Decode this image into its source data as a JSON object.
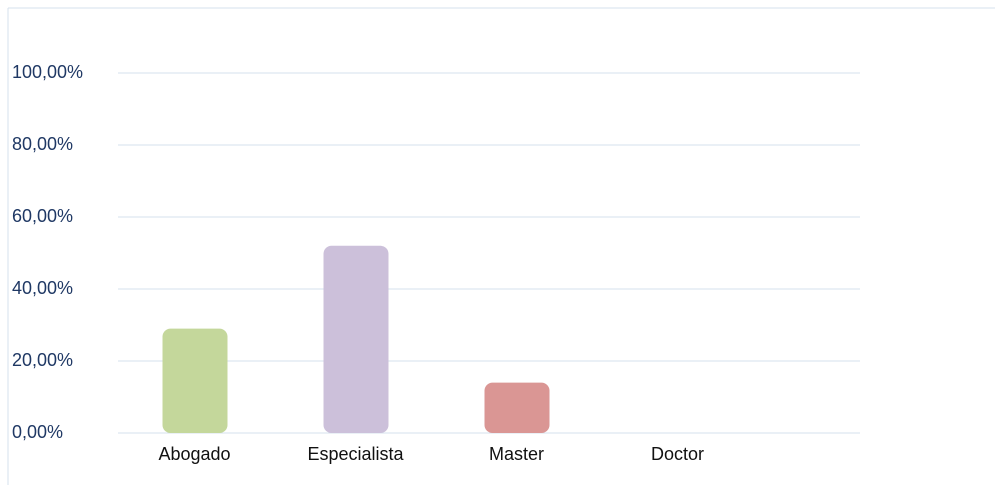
{
  "chart_data": {
    "type": "bar",
    "categories": [
      "Abogado",
      "Especialista",
      "Master",
      "Doctor"
    ],
    "values": [
      29,
      52,
      14,
      0
    ],
    "colors": [
      "#c4d79b",
      "#ccc0da",
      "#da9694",
      "#8eb4e3"
    ],
    "ylim": [
      0,
      100
    ],
    "yticks": [
      {
        "value": 0,
        "label": "0,00%"
      },
      {
        "value": 20,
        "label": "20,00%"
      },
      {
        "value": 40,
        "label": "40,00%"
      },
      {
        "value": 60,
        "label": "60,00%"
      },
      {
        "value": 80,
        "label": "80,00%"
      },
      {
        "value": 100,
        "label": "100,00%"
      }
    ],
    "grid": true
  }
}
